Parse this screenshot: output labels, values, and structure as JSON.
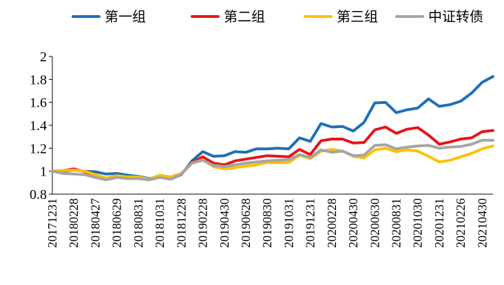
{
  "chart_data": {
    "type": "line",
    "title": "",
    "xlabel": "",
    "ylabel": "",
    "ylim": [
      0.8,
      2.0
    ],
    "yticks": [
      0.8,
      1,
      1.2,
      1.4,
      1.6,
      1.8,
      2
    ],
    "ytick_labels": [
      "0.8",
      "1",
      "1.2",
      "1.4",
      "1.6",
      "1.8",
      "2"
    ],
    "grid": false,
    "legend_position": "top",
    "x": [
      "20171231",
      "20180131",
      "20180228",
      "20180330",
      "20180427",
      "20180531",
      "20180629",
      "20180731",
      "20180831",
      "20180928",
      "20181031",
      "20181130",
      "20181228",
      "20190131",
      "20190228",
      "20190329",
      "20190430",
      "20190531",
      "20190628",
      "20190731",
      "20190830",
      "20190930",
      "20191031",
      "20191129",
      "20191231",
      "20200123",
      "20200228",
      "20200331",
      "20200430",
      "20200529",
      "20200630",
      "20200731",
      "20200831",
      "20200930",
      "20201030",
      "20201130",
      "20201231",
      "20210129",
      "20210226",
      "20210331",
      "20210430",
      "20210531"
    ],
    "xtick_labels": [
      "20171231",
      "20180228",
      "20180427",
      "20180629",
      "20180831",
      "20181031",
      "20181228",
      "20190228",
      "20190430",
      "20190628",
      "20190830",
      "20191031",
      "20191231",
      "20200228",
      "20200430",
      "20200630",
      "20200831",
      "20201030",
      "20201231",
      "20210226",
      "20210430"
    ],
    "series": [
      {
        "name": "第一组",
        "color": "#1F6FB8",
        "values": [
          1.0,
          1.0,
          1.01,
          1.0,
          0.995,
          0.975,
          0.98,
          0.965,
          0.955,
          0.935,
          0.955,
          0.93,
          0.97,
          1.09,
          1.17,
          1.13,
          1.135,
          1.17,
          1.165,
          1.195,
          1.195,
          1.2,
          1.195,
          1.29,
          1.26,
          1.415,
          1.385,
          1.39,
          1.35,
          1.425,
          1.595,
          1.6,
          1.51,
          1.535,
          1.55,
          1.63,
          1.565,
          1.58,
          1.61,
          1.68,
          1.775,
          1.825
        ]
      },
      {
        "name": "第二组",
        "color": "#E8141A",
        "values": [
          1.0,
          1.005,
          1.02,
          0.995,
          0.965,
          0.94,
          0.955,
          0.945,
          0.945,
          0.93,
          0.96,
          0.945,
          0.975,
          1.075,
          1.125,
          1.07,
          1.055,
          1.09,
          1.105,
          1.12,
          1.135,
          1.13,
          1.125,
          1.19,
          1.145,
          1.265,
          1.28,
          1.28,
          1.245,
          1.25,
          1.36,
          1.385,
          1.33,
          1.365,
          1.38,
          1.315,
          1.235,
          1.255,
          1.28,
          1.29,
          1.345,
          1.355
        ]
      },
      {
        "name": "第三组",
        "color": "#FFC000",
        "values": [
          1.0,
          1.005,
          1.01,
          1.0,
          0.97,
          0.94,
          0.96,
          0.95,
          0.95,
          0.93,
          0.965,
          0.95,
          0.98,
          1.07,
          1.1,
          1.04,
          1.02,
          1.03,
          1.045,
          1.055,
          1.075,
          1.075,
          1.075,
          1.14,
          1.11,
          1.175,
          1.19,
          1.175,
          1.13,
          1.115,
          1.185,
          1.2,
          1.17,
          1.185,
          1.175,
          1.13,
          1.08,
          1.095,
          1.125,
          1.155,
          1.195,
          1.22
        ]
      },
      {
        "name": "中证转债",
        "color": "#A5A5A5",
        "values": [
          1.0,
          0.98,
          0.975,
          0.97,
          0.945,
          0.925,
          0.945,
          0.935,
          0.935,
          0.925,
          0.945,
          0.93,
          0.975,
          1.07,
          1.095,
          1.05,
          1.04,
          1.055,
          1.07,
          1.08,
          1.09,
          1.095,
          1.1,
          1.145,
          1.12,
          1.185,
          1.165,
          1.175,
          1.135,
          1.14,
          1.225,
          1.23,
          1.195,
          1.21,
          1.22,
          1.225,
          1.2,
          1.21,
          1.215,
          1.235,
          1.27,
          1.27
        ]
      }
    ]
  }
}
